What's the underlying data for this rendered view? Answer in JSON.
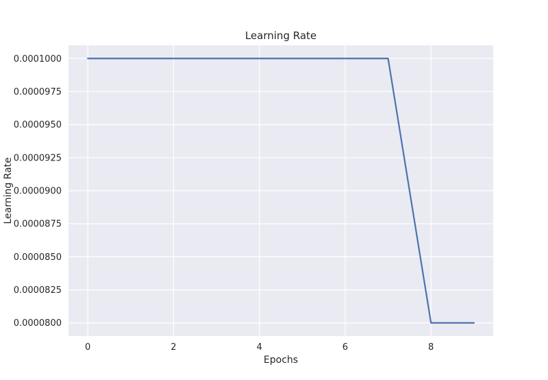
{
  "chart_data": {
    "type": "line",
    "title": "Learning Rate",
    "xlabel": "Epochs",
    "ylabel": "Learning Rate",
    "xlim": [
      -0.45,
      9.45
    ],
    "ylim": [
      7.9e-05,
      0.000101
    ],
    "x_ticks": [
      0,
      2,
      4,
      6,
      8
    ],
    "x_tick_labels": [
      "0",
      "2",
      "4",
      "6",
      "8"
    ],
    "y_ticks": [
      8e-05,
      8.25e-05,
      8.5e-05,
      8.75e-05,
      9e-05,
      9.25e-05,
      9.5e-05,
      9.75e-05,
      0.0001
    ],
    "y_tick_labels": [
      "0.0000800",
      "0.0000825",
      "0.0000850",
      "0.0000875",
      "0.0000900",
      "0.0000925",
      "0.0000950",
      "0.0000975",
      "0.0001000"
    ],
    "grid": true,
    "series": [
      {
        "x": [
          0,
          1,
          2,
          3,
          4,
          5,
          6,
          7,
          8,
          9
        ],
        "values": [
          0.0001,
          0.0001,
          0.0001,
          0.0001,
          0.0001,
          0.0001,
          0.0001,
          0.0001,
          8e-05,
          8e-05
        ]
      }
    ],
    "colors": {
      "plot_background": "#EAEAF2",
      "grid": "#FFFFFF",
      "line": "#4C72B0"
    }
  }
}
